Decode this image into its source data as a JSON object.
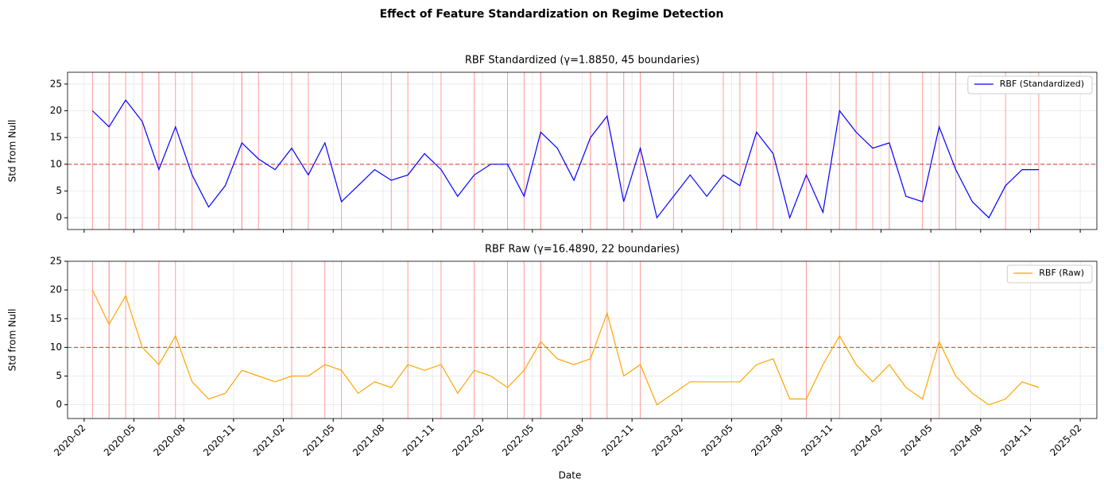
{
  "title": "Effect of Feature Standardization on Regime Detection",
  "xlabel": "Date",
  "chart_data": [
    {
      "type": "line",
      "title": "RBF Standardized (γ=1.8850, 45 boundaries)",
      "ylabel": "Std from Null",
      "x": [
        "2020-02",
        "2020-03",
        "2020-04",
        "2020-05",
        "2020-06",
        "2020-07",
        "2020-08",
        "2020-09",
        "2020-10",
        "2020-11",
        "2020-12",
        "2021-01",
        "2021-02",
        "2021-03",
        "2021-04",
        "2021-05",
        "2021-06",
        "2021-07",
        "2021-08",
        "2021-09",
        "2021-10",
        "2021-11",
        "2021-12",
        "2022-01",
        "2022-02",
        "2022-03",
        "2022-04",
        "2022-05",
        "2022-06",
        "2022-07",
        "2022-08",
        "2022-09",
        "2022-10",
        "2022-11",
        "2022-12",
        "2023-01",
        "2023-02",
        "2023-03",
        "2023-04",
        "2023-05",
        "2023-06",
        "2023-07",
        "2023-08",
        "2023-09",
        "2023-10",
        "2023-11",
        "2023-12",
        "2024-01",
        "2024-02",
        "2024-03",
        "2024-04",
        "2024-05",
        "2024-06",
        "2024-07",
        "2024-08",
        "2024-09",
        "2024-10",
        "2024-11"
      ],
      "series": [
        {
          "name": "RBF (Standardized)",
          "color": "#0000ff",
          "values": [
            20,
            17,
            22,
            18,
            9,
            17,
            8,
            2,
            6,
            14,
            11,
            9,
            13,
            8,
            14,
            3,
            6,
            9,
            7,
            8,
            12,
            9,
            4,
            8,
            10,
            10,
            4,
            16,
            13,
            7,
            15,
            19,
            3,
            13,
            0,
            4,
            8,
            4,
            8,
            6,
            16,
            12,
            0,
            8,
            1,
            20,
            16,
            13,
            14,
            4,
            3,
            17,
            9,
            3,
            0,
            6,
            9,
            9
          ]
        }
      ],
      "boundaries": [
        "2020-02",
        "2020-03",
        "2020-03",
        "2020-04",
        "2020-05",
        "2020-06",
        "2020-06",
        "2020-07",
        "2020-08",
        "2020-11",
        "2020-11",
        "2020-12",
        "2021-02",
        "2021-03",
        "2021-05",
        "2021-08",
        "2021-09",
        "2021-11",
        "2022-01",
        "2022-03",
        "2022-04",
        "2022-05",
        "2022-05",
        "2022-08",
        "2022-08",
        "2022-09",
        "2022-10",
        "2022-11",
        "2023-01",
        "2023-04",
        "2023-05",
        "2023-06",
        "2023-07",
        "2023-09",
        "2023-11",
        "2023-11",
        "2023-12",
        "2024-01",
        "2024-02",
        "2024-02",
        "2024-04",
        "2024-05",
        "2024-06",
        "2024-09",
        "2024-11"
      ],
      "boundary_color": "#ff9999",
      "threshold": 10,
      "threshold_color": "#e03030",
      "xlim": [
        "2020-01",
        "2025-03"
      ],
      "ylim": [
        -2.2,
        27.2
      ],
      "yticks": [
        0,
        5,
        10,
        15,
        20,
        25
      ],
      "grid": true,
      "legend": "upper-right"
    },
    {
      "type": "line",
      "title": "RBF Raw (γ=16.4890, 22 boundaries)",
      "ylabel": "Std from Null",
      "x": [
        "2020-02",
        "2020-03",
        "2020-04",
        "2020-05",
        "2020-06",
        "2020-07",
        "2020-08",
        "2020-09",
        "2020-10",
        "2020-11",
        "2020-12",
        "2021-01",
        "2021-02",
        "2021-03",
        "2021-04",
        "2021-05",
        "2021-06",
        "2021-07",
        "2021-08",
        "2021-09",
        "2021-10",
        "2021-11",
        "2021-12",
        "2022-01",
        "2022-02",
        "2022-03",
        "2022-04",
        "2022-05",
        "2022-06",
        "2022-07",
        "2022-08",
        "2022-09",
        "2022-10",
        "2022-11",
        "2022-12",
        "2023-01",
        "2023-02",
        "2023-03",
        "2023-04",
        "2023-05",
        "2023-06",
        "2023-07",
        "2023-08",
        "2023-09",
        "2023-10",
        "2023-11",
        "2023-12",
        "2024-01",
        "2024-02",
        "2024-03",
        "2024-04",
        "2024-05",
        "2024-06",
        "2024-07",
        "2024-08",
        "2024-09",
        "2024-10",
        "2024-11"
      ],
      "series": [
        {
          "name": "RBF (Raw)",
          "color": "#ffa500",
          "values": [
            20,
            14,
            19,
            10,
            7,
            12,
            4,
            1,
            2,
            6,
            5,
            4,
            5,
            5,
            7,
            6,
            2,
            4,
            3,
            7,
            6,
            7,
            2,
            6,
            5,
            3,
            6,
            11,
            8,
            7,
            8,
            16,
            5,
            7,
            0,
            2,
            4,
            4,
            4,
            4,
            7,
            8,
            1,
            1,
            7,
            12,
            7,
            4,
            7,
            3,
            1,
            11,
            5,
            2,
            0,
            1,
            4,
            3
          ]
        }
      ],
      "boundaries": [
        "2020-02",
        "2020-03",
        "2020-03",
        "2020-04",
        "2020-06",
        "2020-07",
        "2021-02",
        "2021-04",
        "2021-05",
        "2021-09",
        "2021-11",
        "2022-01",
        "2022-03",
        "2022-04",
        "2022-05",
        "2022-05",
        "2022-08",
        "2022-09",
        "2022-11",
        "2023-09",
        "2023-11",
        "2024-05"
      ],
      "boundary_color": "#ff9999",
      "threshold": 10,
      "threshold_color": "#e03030",
      "xlim": [
        "2020-01",
        "2025-03"
      ],
      "ylim": [
        -2.4,
        25
      ],
      "yticks": [
        0,
        5,
        10,
        15,
        20,
        25
      ],
      "xticks": [
        "2020-02",
        "2020-05",
        "2020-08",
        "2020-11",
        "2021-02",
        "2021-05",
        "2021-08",
        "2021-11",
        "2022-02",
        "2022-05",
        "2022-08",
        "2022-11",
        "2023-02",
        "2023-05",
        "2023-08",
        "2023-11",
        "2024-02",
        "2024-05",
        "2024-08",
        "2024-11",
        "2025-02"
      ],
      "grid": true,
      "legend": "upper-right"
    }
  ]
}
